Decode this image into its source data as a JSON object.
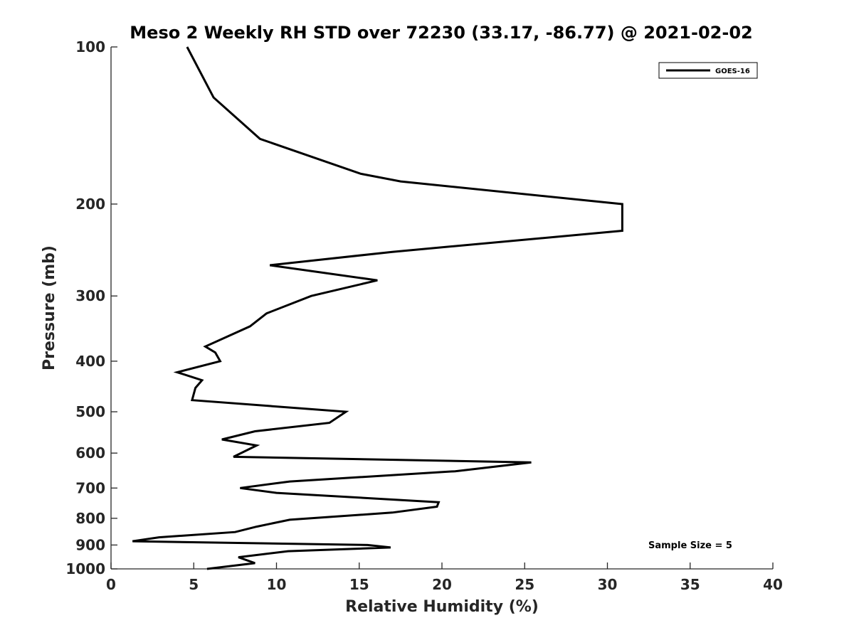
{
  "chart_data": {
    "type": "line",
    "title": "Meso 2 Weekly RH STD over 72230 (33.17, -86.77) @ 2021-02-02",
    "xlabel": "Relative Humidity (%)",
    "ylabel": "Pressure (mb)",
    "xlim": [
      0,
      40
    ],
    "ylim": [
      100,
      1000
    ],
    "yscale": "log",
    "y_reversed": true,
    "x_ticks": [
      0,
      5,
      10,
      15,
      20,
      25,
      30,
      35,
      40
    ],
    "x_tick_labels": [
      "0",
      "5",
      "10",
      "15",
      "20",
      "25",
      "30",
      "35",
      "40"
    ],
    "y_ticks": [
      100,
      200,
      300,
      400,
      500,
      600,
      700,
      800,
      900,
      1000
    ],
    "y_tick_labels": [
      "100",
      "200",
      "300",
      "400",
      "500",
      "600",
      "700",
      "800",
      "900",
      "1000"
    ],
    "grid": false,
    "legend_position": "top-right",
    "series": [
      {
        "name": "GOES-16",
        "color": "#000000",
        "points": [
          [
            4.6,
            100
          ],
          [
            6.2,
            125
          ],
          [
            9.0,
            150
          ],
          [
            15.1,
            175
          ],
          [
            17.5,
            181
          ],
          [
            30.9,
            200
          ],
          [
            30.9,
            225
          ],
          [
            17.0,
            247
          ],
          [
            9.6,
            262
          ],
          [
            16.1,
            280
          ],
          [
            12.1,
            300
          ],
          [
            9.4,
            324
          ],
          [
            8.4,
            343
          ],
          [
            5.7,
            375
          ],
          [
            6.3,
            385
          ],
          [
            6.6,
            400
          ],
          [
            4.0,
            420
          ],
          [
            5.5,
            435
          ],
          [
            5.1,
            450
          ],
          [
            4.9,
            475
          ],
          [
            14.2,
            500
          ],
          [
            13.2,
            525
          ],
          [
            8.7,
            545
          ],
          [
            6.7,
            565
          ],
          [
            8.8,
            580
          ],
          [
            7.4,
            610
          ],
          [
            25.4,
            625
          ],
          [
            20.8,
            650
          ],
          [
            10.8,
            680
          ],
          [
            7.8,
            700
          ],
          [
            10.0,
            715
          ],
          [
            19.8,
            745
          ],
          [
            19.7,
            760
          ],
          [
            17.0,
            780
          ],
          [
            10.8,
            805
          ],
          [
            8.8,
            830
          ],
          [
            7.5,
            850
          ],
          [
            2.9,
            870
          ],
          [
            1.3,
            885
          ],
          [
            15.5,
            900
          ],
          [
            16.9,
            910
          ],
          [
            10.7,
            925
          ],
          [
            7.7,
            950
          ],
          [
            8.7,
            975
          ],
          [
            5.8,
            1000
          ]
        ]
      }
    ],
    "annotation": "Sample Size = 5"
  }
}
